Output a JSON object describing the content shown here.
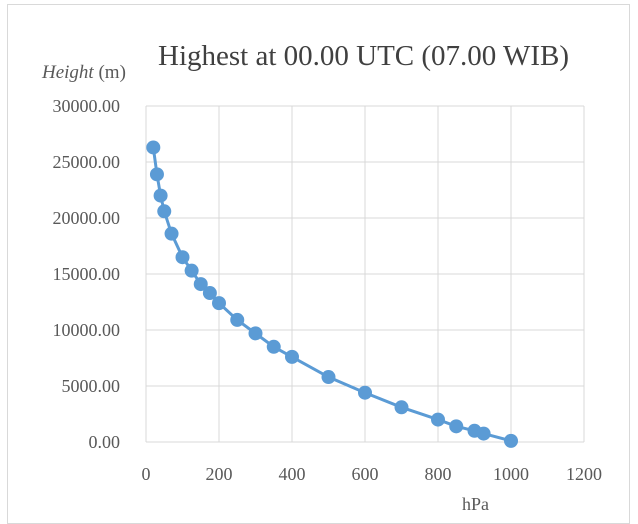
{
  "chart_data": {
    "type": "scatter",
    "title": "Highest at 00.00 UTC (07.00 WIB)",
    "ylabel_italic": "Height",
    "ylabel_unit": "(m)",
    "xlabel": "hPa",
    "xlim": [
      0,
      1200
    ],
    "ylim": [
      0,
      30000
    ],
    "x_ticks": [
      "0",
      "200",
      "400",
      "600",
      "800",
      "1000",
      "1200"
    ],
    "y_ticks": [
      "0.00",
      "5000.00",
      "10000.00",
      "15000.00",
      "20000.00",
      "25000.00",
      "30000.00"
    ],
    "grid": true,
    "legend": "none",
    "series": [
      {
        "color": "#5b9bd5",
        "x": [
          20,
          30,
          40,
          50,
          70,
          100,
          125,
          150,
          175,
          200,
          250,
          300,
          350,
          400,
          500,
          600,
          700,
          800,
          850,
          900,
          925,
          1000
        ],
        "y": [
          26300,
          23900,
          22000,
          20600,
          18600,
          16500,
          15300,
          14100,
          13300,
          12400,
          10900,
          9700,
          8500,
          7600,
          5800,
          4400,
          3100,
          2000,
          1400,
          1000,
          750,
          100
        ]
      }
    ]
  }
}
